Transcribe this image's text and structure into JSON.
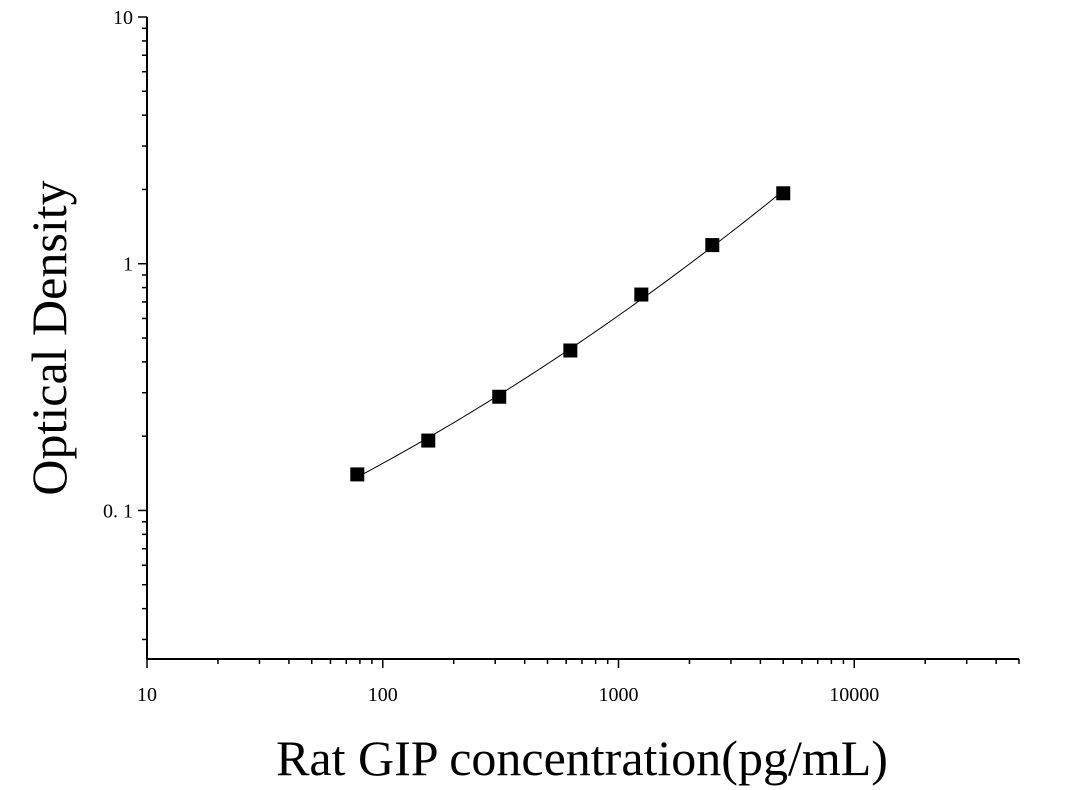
{
  "chart_data": {
    "type": "scatter",
    "title": "",
    "xlabel": "Rat GIP concentration(pg/mL)",
    "ylabel": "Optical Density",
    "xscale": "log",
    "yscale": "log",
    "xlim": [
      10,
      50000
    ],
    "ylim": [
      0.025,
      10
    ],
    "x_tick_labels": [
      "10",
      "100",
      "1000",
      "10000"
    ],
    "y_tick_labels": [
      "0. 1",
      "1",
      "10"
    ],
    "grid": false,
    "legend": "none",
    "series": [
      {
        "marker": "square",
        "color": "#000000",
        "x": [
          78,
          156,
          312,
          625,
          1250,
          2500,
          5000
        ],
        "y": [
          0.14,
          0.192,
          0.289,
          0.445,
          0.75,
          1.19,
          1.93
        ]
      }
    ],
    "fit_curve": {
      "color": "#000000",
      "style": "solid",
      "x_range": [
        78,
        5000
      ]
    }
  }
}
